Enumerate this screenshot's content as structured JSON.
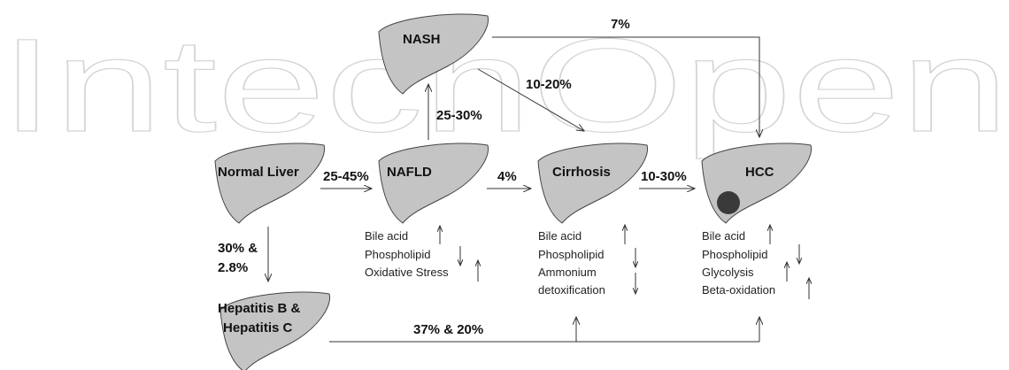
{
  "watermark": "IntechOpen",
  "nodes": [
    {
      "label": "NASH"
    },
    {
      "label": "Normal Liver"
    },
    {
      "label": "NAFLD"
    },
    {
      "label": "Cirrhosis"
    },
    {
      "label": "HCC"
    },
    {
      "label": "Hepatitis B &",
      "label2": "Hepatitis C"
    }
  ],
  "edges": [
    {
      "label": "25-45%"
    },
    {
      "label": "4%"
    },
    {
      "label": "10-30%"
    },
    {
      "label": "25-30%"
    },
    {
      "label": "10-20%"
    },
    {
      "label": "7%"
    },
    {
      "label": "30% &",
      "label2": "2.8%"
    },
    {
      "label": "37% & 20%"
    }
  ],
  "metabolites": {
    "nafld": [
      "Bile acid",
      "Phospholipid",
      "Oxidative Stress"
    ],
    "cirrhosis": [
      "Bile acid",
      "Phospholipid",
      "Ammonium",
      "detoxification"
    ],
    "hcc": [
      "Bile acid",
      "Phospholipid",
      "Glycolysis",
      "Beta-oxidation"
    ]
  }
}
